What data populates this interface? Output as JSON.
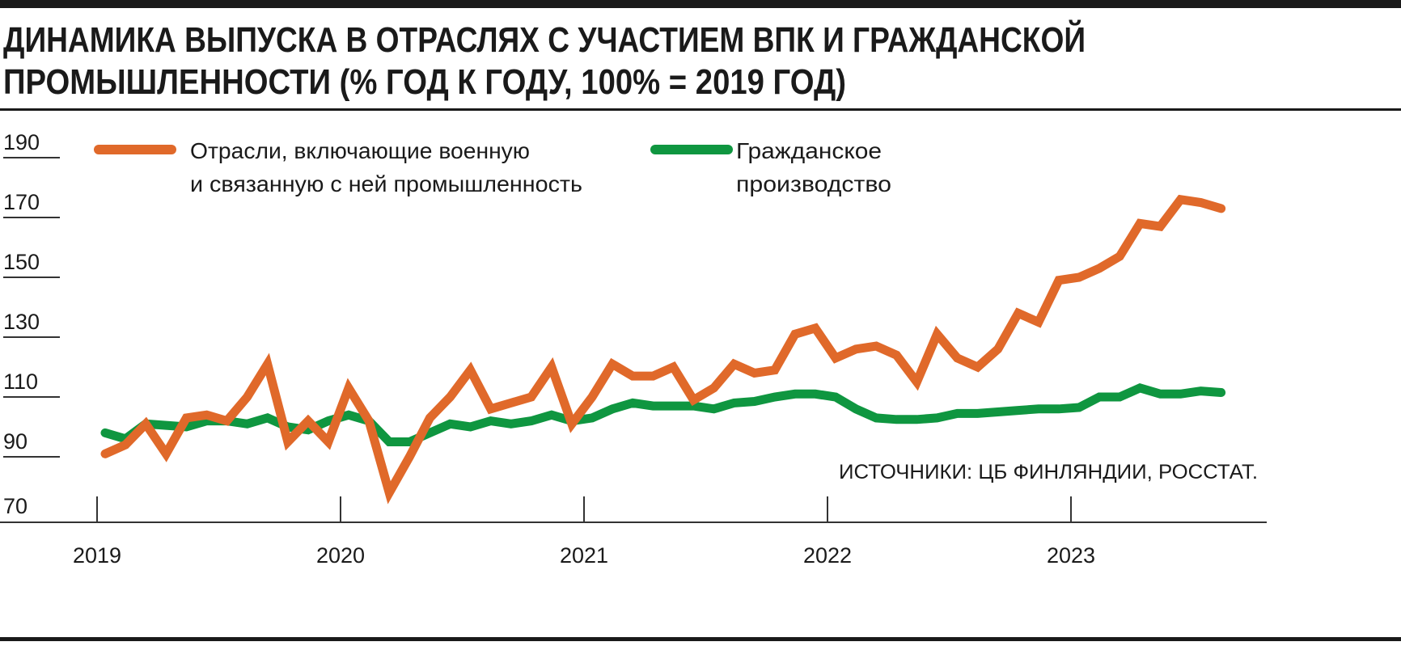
{
  "chart_data": {
    "type": "line",
    "title": [
      "ДИНАМИКА ВЫПУСКА В ОТРАСЛЯХ С УЧАСТИЕМ ВПК И ГРАЖДАНСКОЙ",
      "ПРОМЫШЛЕННОСТИ (% ГОД К ГОДУ, 100% = 2019 ГОД)"
    ],
    "source": "ИСТОЧНИКИ: ЦБ ФИНЛЯНДИИ, РОССТАТ.",
    "ylim": [
      70,
      190
    ],
    "yticks": [
      "190",
      "170",
      "150",
      "130",
      "110",
      "90",
      "70"
    ],
    "xticks": [
      "2019",
      "2020",
      "2021",
      "2022",
      "2023"
    ],
    "x_start": "2019-01",
    "x_step": "month",
    "grid": false,
    "legend_placement": "top",
    "series": [
      {
        "name": [
          "Отрасли, включающие военную",
          "и связанную с ней промышленность"
        ],
        "color": "#e0692a",
        "values": [
          91,
          94,
          101,
          91,
          103,
          104,
          102,
          110,
          121,
          95,
          102,
          95,
          113,
          102,
          78,
          90,
          103,
          110,
          119,
          106,
          108,
          110,
          120,
          101,
          110,
          121,
          117,
          117,
          120,
          109,
          113,
          121,
          118,
          119,
          131,
          133,
          123,
          126,
          127,
          124,
          115,
          131,
          123,
          120,
          126,
          138,
          135,
          149,
          150,
          153,
          157,
          168,
          167,
          176,
          175,
          173
        ]
      },
      {
        "name": [
          "Гражданское",
          "производство"
        ],
        "color": "#0f9640",
        "values": [
          98,
          96,
          101,
          100.5,
          100,
          102,
          102,
          101,
          103,
          100,
          99,
          102,
          104,
          102,
          95,
          95,
          98,
          101,
          100,
          102,
          101,
          102,
          104,
          102,
          103,
          106,
          108,
          107,
          107,
          107,
          106,
          108,
          108.5,
          110,
          111,
          111,
          110,
          106,
          103,
          102.5,
          102.5,
          103,
          104.5,
          104.5,
          105,
          105.5,
          106,
          106,
          106.5,
          110,
          110,
          113,
          111,
          111,
          112,
          111.5
        ]
      }
    ]
  }
}
